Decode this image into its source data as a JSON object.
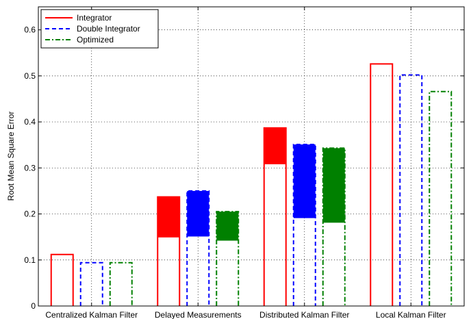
{
  "chart_data": {
    "type": "bar",
    "ylabel": "Root Mean Square Error",
    "xlabel": "",
    "title": "",
    "ylim": [
      0,
      0.65
    ],
    "yticks": [
      0,
      0.1,
      0.2,
      0.3,
      0.4,
      0.5,
      0.6
    ],
    "ytick_labels": [
      "0",
      "0.1",
      "0.2",
      "0.3",
      "0.4",
      "0.5",
      "0.6"
    ],
    "grid": true,
    "legend_position": "top-left",
    "categories": [
      "Centralized Kalman Filter",
      "Delayed Measurements",
      "Distributed Kalman Filter",
      "Local Kalman Filter"
    ],
    "series": [
      {
        "name": "Integrator",
        "color": "#ff0000",
        "line_style": "solid",
        "values": [
          0.112,
          0.237,
          0.387,
          0.526
        ],
        "filled_from": [
          null,
          0.149,
          0.308,
          null
        ]
      },
      {
        "name": "Double Integrator",
        "color": "#0000ff",
        "line_style": "dashed",
        "values": [
          0.094,
          0.25,
          0.351,
          0.502
        ],
        "filled_from": [
          null,
          0.151,
          0.191,
          null
        ]
      },
      {
        "name": "Optimized",
        "color": "#008000",
        "line_style": "dashdot",
        "values": [
          0.094,
          0.205,
          0.343,
          0.466
        ],
        "filled_from": [
          null,
          0.142,
          0.181,
          null
        ]
      }
    ]
  }
}
